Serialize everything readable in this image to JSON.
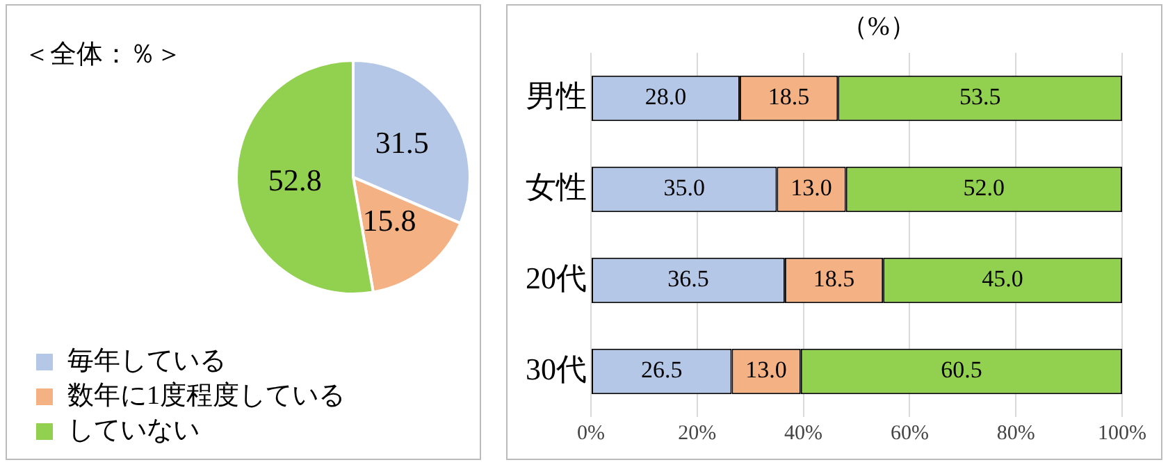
{
  "chart_data": [
    {
      "type": "pie",
      "annotations": [
        "＜全体：％＞"
      ],
      "categories": [
        "毎年している",
        "数年に1度程度している",
        "していない"
      ],
      "values": [
        31.5,
        15.8,
        52.8
      ],
      "colors": [
        "#b4c7e7",
        "#f4b183",
        "#92d050"
      ],
      "data_labels": true,
      "legend": "bottom left"
    },
    {
      "type": "bar",
      "orientation": "horizontal",
      "stacked": true,
      "annotations": [
        "（%）"
      ],
      "categories": [
        "男性",
        "女性",
        "20代",
        "30代"
      ],
      "series": [
        {
          "color": "#b4c7e7",
          "values": [
            28.0,
            35.0,
            36.5,
            26.5
          ],
          "value_labels": [
            "28.0",
            "35.0",
            "36.5",
            "26.5"
          ]
        },
        {
          "color": "#f4b183",
          "values": [
            18.5,
            13.0,
            18.5,
            13.0
          ],
          "value_labels": [
            "18.5",
            "13.0",
            "18.5",
            "13.0"
          ]
        },
        {
          "color": "#92d050",
          "values": [
            53.5,
            52.0,
            45.0,
            60.5
          ],
          "value_labels": [
            "53.5",
            "52.0",
            "45.0",
            "60.5"
          ]
        }
      ],
      "xlim": [
        0,
        100
      ],
      "xticks": [
        {
          "value": 0,
          "label": "0%"
        },
        {
          "value": 20,
          "label": "20%"
        },
        {
          "value": 40,
          "label": "40%"
        },
        {
          "value": 60,
          "label": "60%"
        },
        {
          "value": 80,
          "label": "80%"
        },
        {
          "value": 100,
          "label": "100%"
        }
      ],
      "grid": "x",
      "legend": false
    }
  ]
}
